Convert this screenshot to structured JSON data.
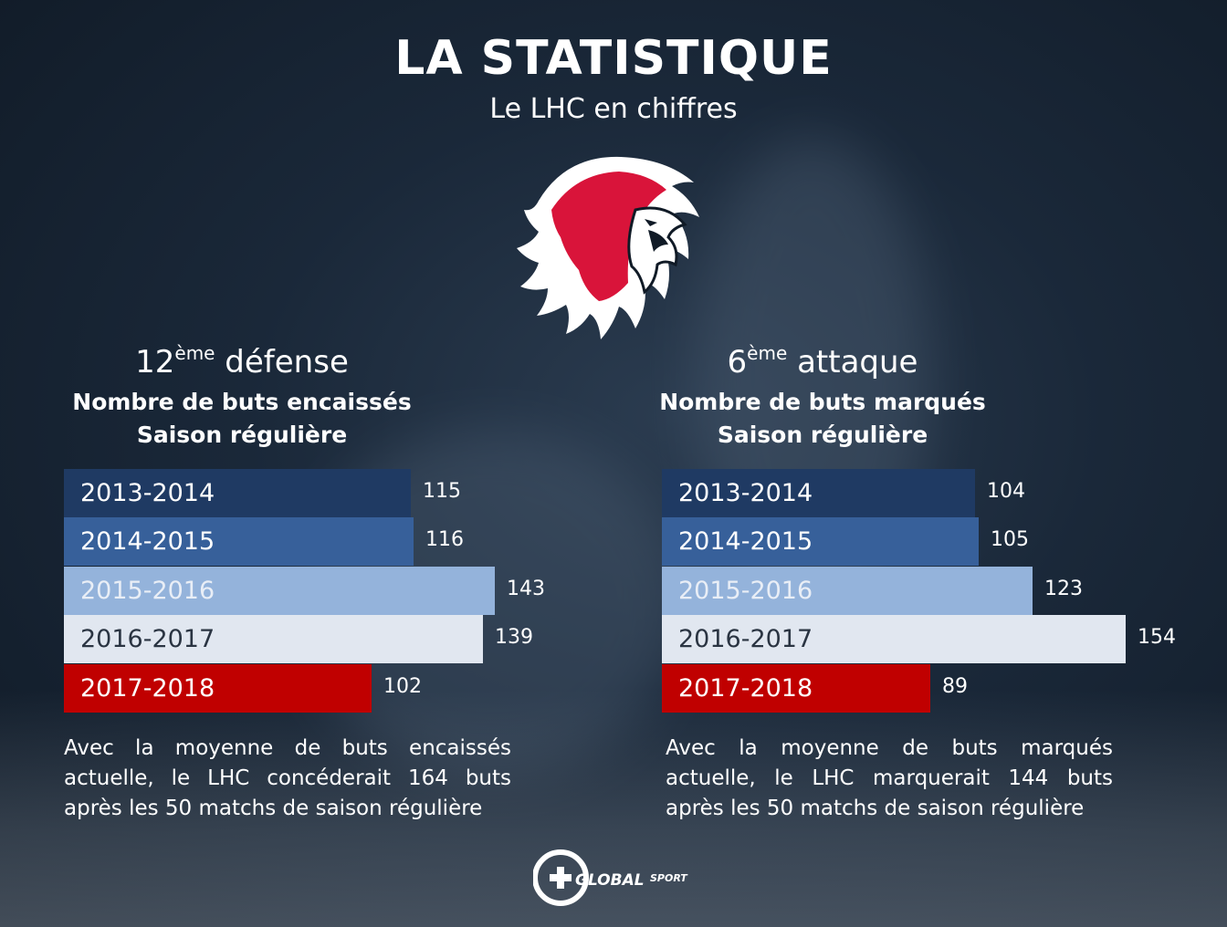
{
  "header": {
    "title": "LA STATISTIQUE",
    "subtitle": "Le LHC en chiffres"
  },
  "colors": {
    "season_2013_2014": "#1f3a63",
    "season_2014_2015": "#37609a",
    "season_2015_2016": "#94b3db",
    "season_2016_2017": "#e1e7f0",
    "season_2017_2018": "#c00000",
    "logo_red": "#d9143a"
  },
  "icons": {
    "logo": "lion-logo",
    "brand": "global-sport-logo"
  },
  "brand": {
    "name_bold": "GLOBAL",
    "name_rest": "SPORT"
  },
  "chart_data": [
    {
      "type": "bar",
      "orientation": "horizontal",
      "heading_rank": "12",
      "heading_suffix": "ème",
      "heading_word": "défense",
      "subtitle_line1": "Nombre de buts encaissés",
      "subtitle_line2": "Saison régulière",
      "categories": [
        "2013-2014",
        "2014-2015",
        "2015-2016",
        "2016-2017",
        "2017-2018"
      ],
      "values": [
        115,
        116,
        143,
        139,
        102
      ],
      "note": "Avec la moyenne de buts encaissés actuelle, le LHC concéderait 164 buts après les 50 matchs de saison régulière"
    },
    {
      "type": "bar",
      "orientation": "horizontal",
      "heading_rank": "6",
      "heading_suffix": "ème",
      "heading_word": "attaque",
      "subtitle_line1": "Nombre de buts marqués",
      "subtitle_line2": "Saison régulière",
      "categories": [
        "2013-2014",
        "2014-2015",
        "2015-2016",
        "2016-2017",
        "2017-2018"
      ],
      "values": [
        104,
        105,
        123,
        154,
        89
      ],
      "note": "Avec la moyenne de buts marqués actuelle, le LHC marquerait 144 buts après les 50 matchs de saison régulière"
    }
  ]
}
